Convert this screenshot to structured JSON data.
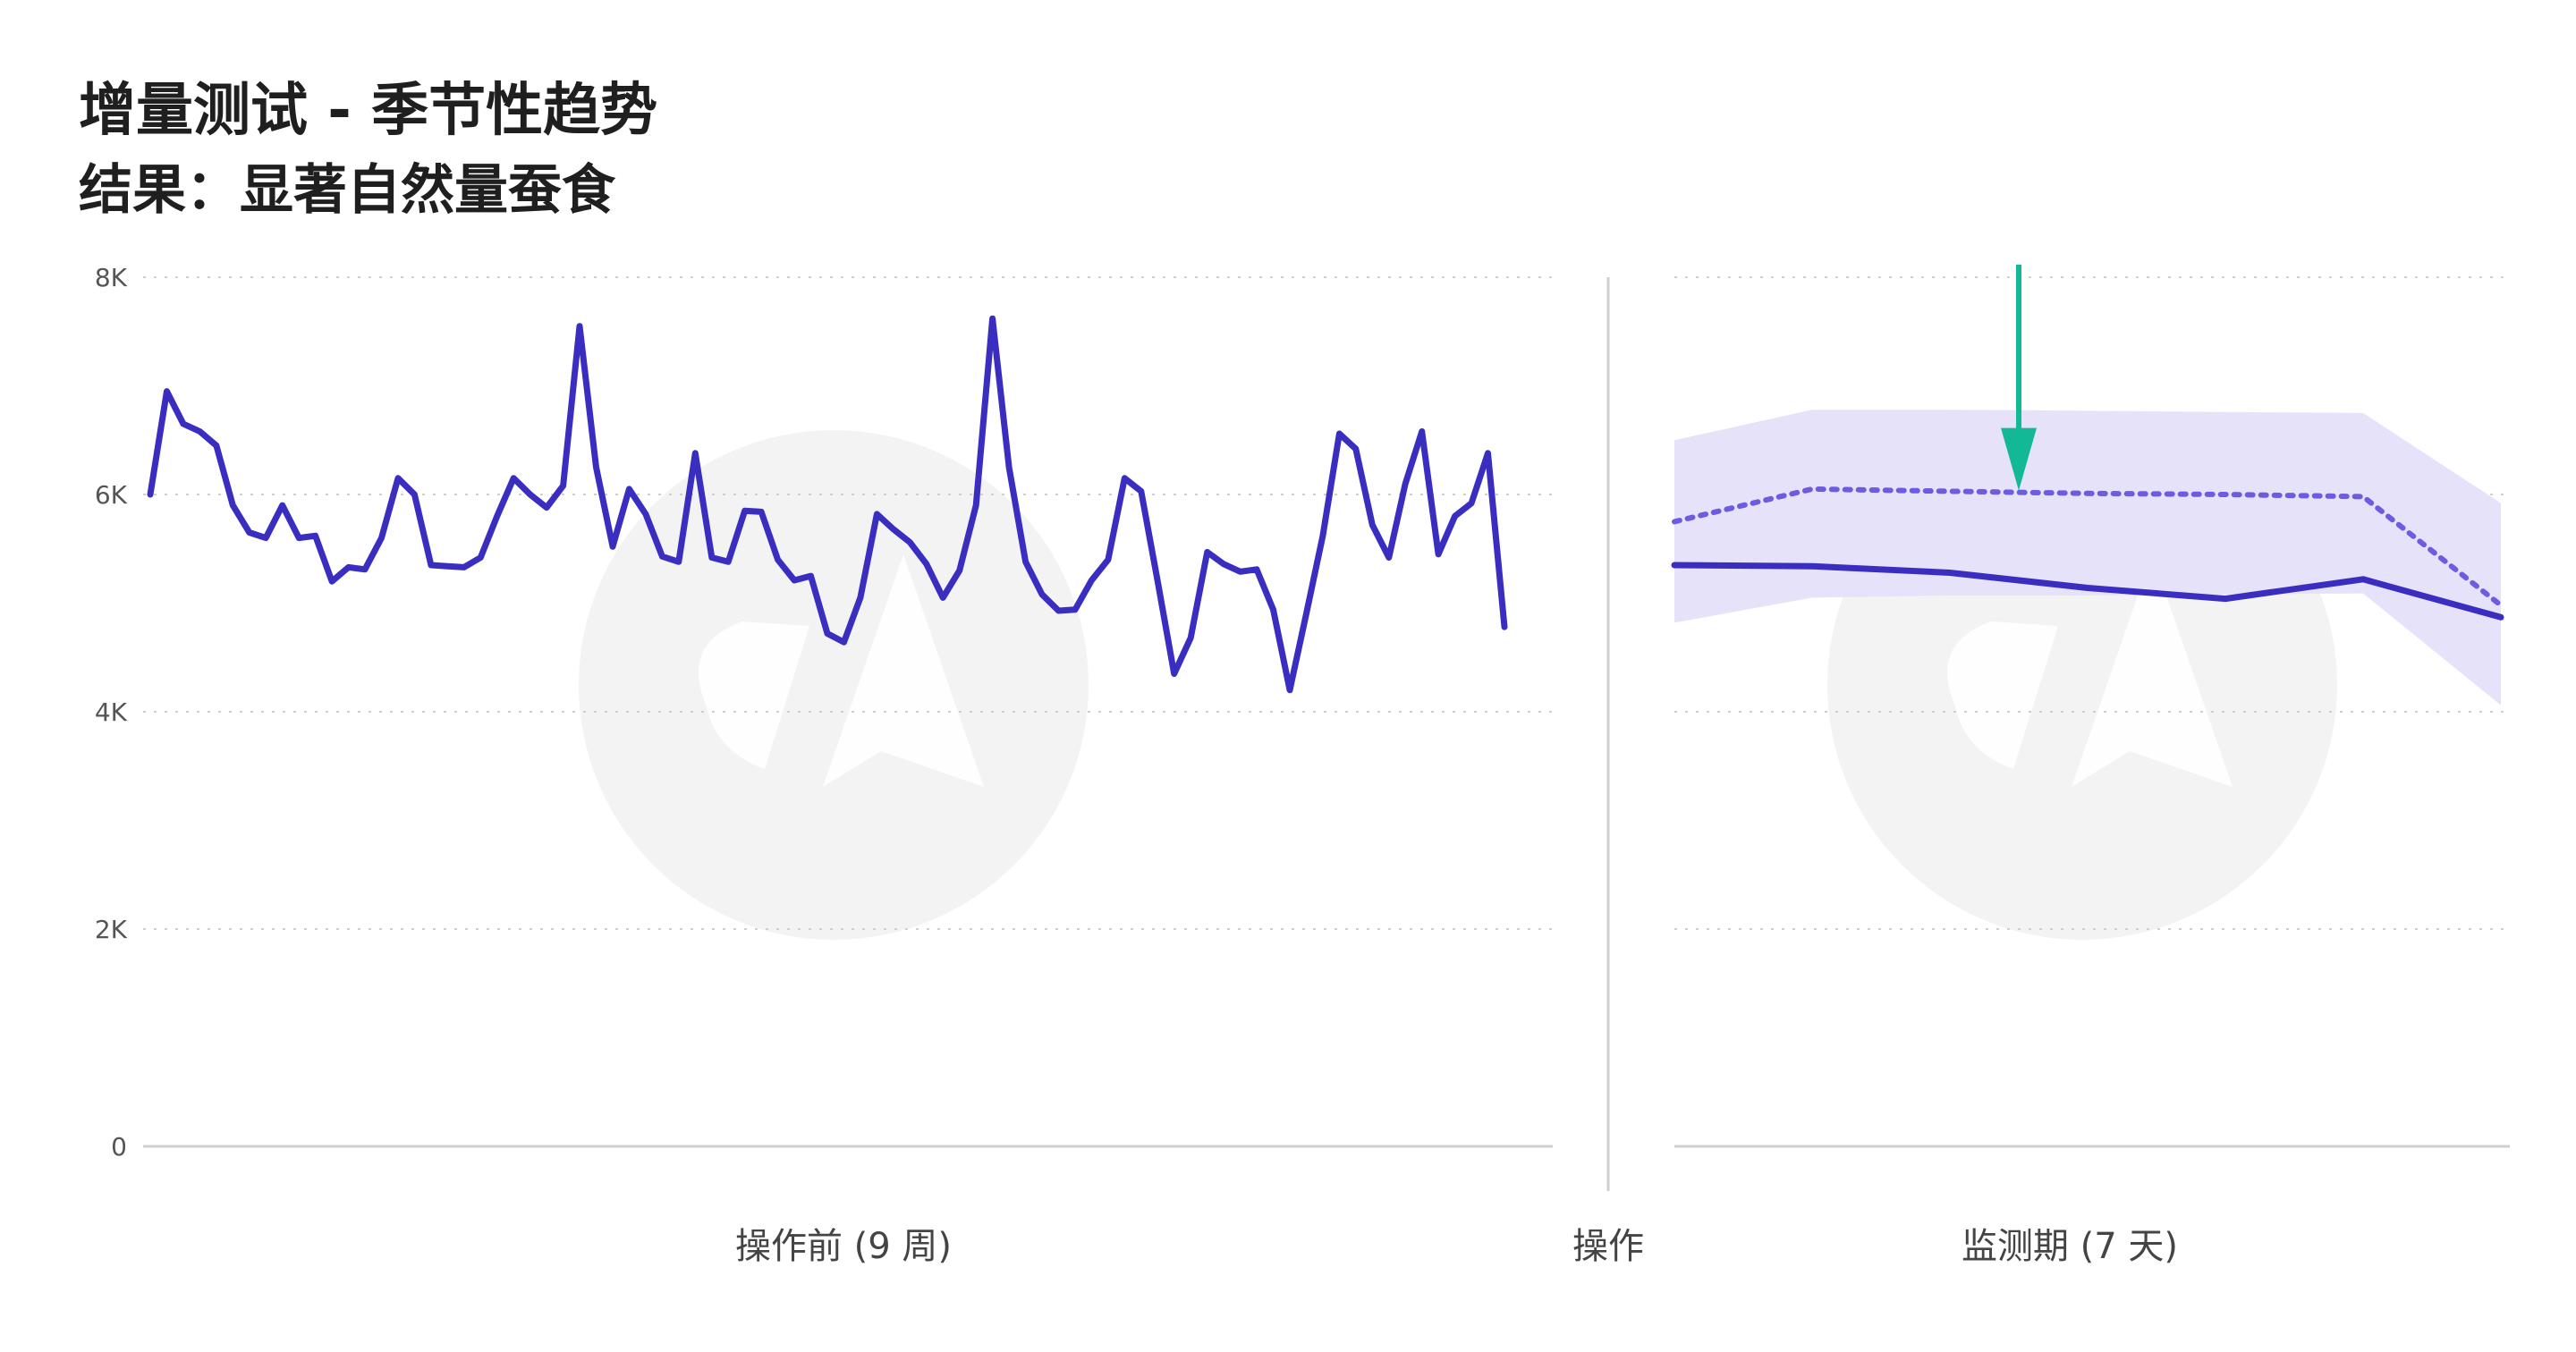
{
  "title": "增量测试 - 季节性趋势",
  "subtitle": "结果：显著自然量蚕食",
  "colors": {
    "line": "#3a2ec0",
    "band": "#e6e2fa",
    "forecast": "#6d5ce0",
    "arrow": "#13b897",
    "grid": "#cfcfcf",
    "watermark": "#f3f3f3"
  },
  "chart_data": {
    "type": "line",
    "ylim": [
      0,
      8000
    ],
    "yticks": [
      "0",
      "2K",
      "4K",
      "6K",
      "8K"
    ],
    "ytick_values": [
      0,
      2000,
      4000,
      6000,
      8000
    ],
    "pre_period": {
      "xlabel": "操作前 (9 周)",
      "series": [
        {
          "values": [
            6000,
            6950,
            6650,
            6580,
            6450,
            5900,
            5650,
            5600,
            5900,
            5600,
            5620,
            5200,
            5330,
            5310,
            5600,
            6150,
            6000,
            5350,
            5340,
            5330,
            5420,
            5800,
            6150,
            6000,
            5880,
            6080,
            7550,
            6250,
            5520,
            6050,
            5820,
            5430,
            5380,
            6380,
            5420,
            5380,
            5850,
            5840,
            5400,
            5210,
            5250,
            4720,
            4640,
            5050,
            5820,
            5680,
            5560,
            5360,
            5050,
            5300,
            5900,
            7620,
            6250,
            5380,
            5080,
            4930,
            4940,
            5210,
            5400,
            6150,
            6030,
            5200,
            4350,
            4680,
            5470,
            5360,
            5290,
            5310,
            4940,
            4200,
            4900,
            5620,
            6560,
            6420,
            5720,
            5420,
            6100,
            6580,
            5450,
            5800,
            5920,
            6380,
            4780
          ]
        }
      ]
    },
    "action_label": "操作",
    "monitoring_period": {
      "xlabel": "监测期 (7 天)",
      "x": [
        1,
        2,
        3,
        4,
        5,
        6,
        7
      ],
      "series": [
        {
          "values": [
            5350,
            5340,
            5280,
            5140,
            5040,
            5220,
            4870
          ]
        },
        {
          "values": [
            5750,
            6050,
            6030,
            6010,
            6000,
            5980,
            4980
          ]
        }
      ],
      "band_upper": [
        6500,
        6780,
        6780,
        6770,
        6760,
        6750,
        5920
      ],
      "band_lower": [
        4820,
        5050,
        5070,
        5070,
        5080,
        5090,
        4060
      ],
      "arrow_day": 3.5
    }
  }
}
